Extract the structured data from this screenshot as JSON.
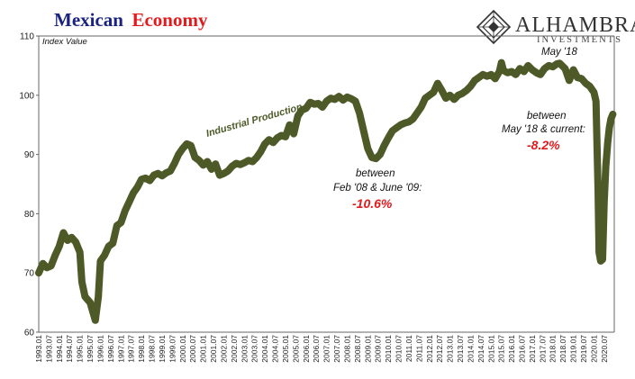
{
  "header": {
    "title_part1": "Mexican",
    "title_part2": "Economy",
    "title_color1": "#1a237e",
    "title_color2": "#e31a1c",
    "logo_name": "ALHAMBRA",
    "logo_sub": "INVESTMENTS"
  },
  "chart_data": {
    "type": "line",
    "title": "Mexican Economy",
    "ylabel": "Index Value",
    "xlabel": "",
    "ylim": [
      60,
      110
    ],
    "yticks": [
      60,
      70,
      80,
      90,
      100,
      110
    ],
    "grid": false,
    "line_color": "#4d5a28",
    "x_tick_labels": [
      "1993.01",
      "1993.07",
      "1994.01",
      "1994.07",
      "1995.01",
      "1995.07",
      "1996.01",
      "1996.07",
      "1997.01",
      "1997.07",
      "1998.01",
      "1998.07",
      "1999.01",
      "1999.07",
      "2000.01",
      "2000.07",
      "2001.01",
      "2001.07",
      "2002.01",
      "2002.07",
      "2003.01",
      "2003.07",
      "2004.01",
      "2004.07",
      "2005.01",
      "2005.07",
      "2006.01",
      "2006.07",
      "2007.01",
      "2007.07",
      "2008.01",
      "2008.07",
      "2009.01",
      "2009.07",
      "2010.01",
      "2010.07",
      "2011.01",
      "2011.07",
      "2012.01",
      "2012.07",
      "2013.01",
      "2013.07",
      "2014.01",
      "2014.07",
      "2015.01",
      "2015.07",
      "2016.01",
      "2016.07",
      "2017.01",
      "2017.07",
      "2018.01",
      "2018.07",
      "2019.01",
      "2019.07",
      "2020.01",
      "2020.07"
    ],
    "series": [
      {
        "name": "Industrial Production",
        "points": [
          [
            1993.0,
            70.0
          ],
          [
            1993.2,
            71.6
          ],
          [
            1993.4,
            70.9
          ],
          [
            1993.6,
            71.2
          ],
          [
            1993.8,
            73.0
          ],
          [
            1994.0,
            74.5
          ],
          [
            1994.2,
            76.8
          ],
          [
            1994.4,
            75.5
          ],
          [
            1994.6,
            76.0
          ],
          [
            1994.8,
            75.2
          ],
          [
            1995.0,
            73.5
          ],
          [
            1995.1,
            68.5
          ],
          [
            1995.25,
            66.0
          ],
          [
            1995.5,
            65.0
          ],
          [
            1995.75,
            62.0
          ],
          [
            1995.9,
            66.0
          ],
          [
            1996.0,
            72.0
          ],
          [
            1996.2,
            73.0
          ],
          [
            1996.4,
            74.5
          ],
          [
            1996.6,
            75.0
          ],
          [
            1996.8,
            78.0
          ],
          [
            1997.0,
            78.5
          ],
          [
            1997.2,
            80.5
          ],
          [
            1997.4,
            82.0
          ],
          [
            1997.6,
            83.5
          ],
          [
            1997.8,
            84.5
          ],
          [
            1998.0,
            85.8
          ],
          [
            1998.2,
            86.0
          ],
          [
            1998.4,
            85.6
          ],
          [
            1998.6,
            86.5
          ],
          [
            1998.8,
            86.8
          ],
          [
            1999.0,
            86.4
          ],
          [
            1999.2,
            86.9
          ],
          [
            1999.4,
            87.2
          ],
          [
            1999.6,
            88.5
          ],
          [
            1999.8,
            90.0
          ],
          [
            2000.0,
            91.0
          ],
          [
            2000.2,
            91.8
          ],
          [
            2000.4,
            91.5
          ],
          [
            2000.6,
            89.5
          ],
          [
            2000.8,
            89.0
          ],
          [
            2001.0,
            88.2
          ],
          [
            2001.2,
            88.8
          ],
          [
            2001.4,
            87.5
          ],
          [
            2001.6,
            88.4
          ],
          [
            2001.8,
            86.5
          ],
          [
            2002.0,
            86.8
          ],
          [
            2002.2,
            87.2
          ],
          [
            2002.4,
            88.0
          ],
          [
            2002.6,
            88.5
          ],
          [
            2002.8,
            88.3
          ],
          [
            2003.0,
            88.6
          ],
          [
            2003.2,
            89.0
          ],
          [
            2003.4,
            88.8
          ],
          [
            2003.6,
            89.5
          ],
          [
            2003.8,
            90.5
          ],
          [
            2004.0,
            91.8
          ],
          [
            2004.2,
            92.5
          ],
          [
            2004.4,
            92.0
          ],
          [
            2004.6,
            92.8
          ],
          [
            2004.8,
            93.2
          ],
          [
            2005.0,
            93.0
          ],
          [
            2005.2,
            95.0
          ],
          [
            2005.4,
            93.5
          ],
          [
            2005.6,
            96.5
          ],
          [
            2005.8,
            97.5
          ],
          [
            2006.0,
            97.8
          ],
          [
            2006.2,
            98.8
          ],
          [
            2006.4,
            98.5
          ],
          [
            2006.6,
            98.6
          ],
          [
            2006.8,
            98.0
          ],
          [
            2007.0,
            99.0
          ],
          [
            2007.2,
            99.5
          ],
          [
            2007.4,
            99.3
          ],
          [
            2007.6,
            99.8
          ],
          [
            2007.8,
            99.2
          ],
          [
            2008.0,
            99.7
          ],
          [
            2008.2,
            99.4
          ],
          [
            2008.4,
            99.0
          ],
          [
            2008.6,
            97.0
          ],
          [
            2008.8,
            94.0
          ],
          [
            2009.0,
            91.0
          ],
          [
            2009.2,
            89.5
          ],
          [
            2009.4,
            89.3
          ],
          [
            2009.6,
            90.0
          ],
          [
            2009.8,
            91.5
          ],
          [
            2010.0,
            92.8
          ],
          [
            2010.2,
            94.0
          ],
          [
            2010.4,
            94.5
          ],
          [
            2010.6,
            95.0
          ],
          [
            2010.8,
            95.3
          ],
          [
            2011.0,
            95.5
          ],
          [
            2011.2,
            96.0
          ],
          [
            2011.4,
            97.0
          ],
          [
            2011.6,
            98.0
          ],
          [
            2011.8,
            99.5
          ],
          [
            2012.0,
            100.0
          ],
          [
            2012.2,
            100.5
          ],
          [
            2012.4,
            102.0
          ],
          [
            2012.6,
            100.8
          ],
          [
            2012.8,
            99.5
          ],
          [
            2013.0,
            100.0
          ],
          [
            2013.2,
            99.3
          ],
          [
            2013.4,
            100.0
          ],
          [
            2013.6,
            100.3
          ],
          [
            2013.8,
            100.8
          ],
          [
            2014.0,
            101.5
          ],
          [
            2014.2,
            102.5
          ],
          [
            2014.4,
            103.0
          ],
          [
            2014.6,
            103.5
          ],
          [
            2014.8,
            103.2
          ],
          [
            2015.0,
            103.5
          ],
          [
            2015.2,
            102.8
          ],
          [
            2015.4,
            104.0
          ],
          [
            2015.5,
            105.5
          ],
          [
            2015.6,
            104.2
          ],
          [
            2015.8,
            103.8
          ],
          [
            2016.0,
            104.0
          ],
          [
            2016.2,
            103.5
          ],
          [
            2016.4,
            104.5
          ],
          [
            2016.6,
            104.0
          ],
          [
            2016.8,
            105.0
          ],
          [
            2017.0,
            104.3
          ],
          [
            2017.2,
            103.8
          ],
          [
            2017.4,
            103.5
          ],
          [
            2017.6,
            104.5
          ],
          [
            2017.8,
            105.0
          ],
          [
            2018.0,
            104.8
          ],
          [
            2018.2,
            105.3
          ],
          [
            2018.33,
            105.4
          ],
          [
            2018.6,
            104.5
          ],
          [
            2018.8,
            102.5
          ],
          [
            2019.0,
            104.3
          ],
          [
            2019.2,
            103.0
          ],
          [
            2019.4,
            102.8
          ],
          [
            2019.6,
            102.0
          ],
          [
            2019.8,
            101.5
          ],
          [
            2019.9,
            101.0
          ],
          [
            2020.0,
            100.5
          ],
          [
            2020.1,
            99.0
          ],
          [
            2020.2,
            84.0
          ],
          [
            2020.25,
            73.5
          ],
          [
            2020.33,
            72.0
          ],
          [
            2020.42,
            72.3
          ],
          [
            2020.5,
            82.0
          ],
          [
            2020.58,
            88.0
          ],
          [
            2020.67,
            92.0
          ],
          [
            2020.75,
            94.5
          ],
          [
            2020.83,
            96.0
          ],
          [
            2020.92,
            96.8
          ]
        ]
      }
    ],
    "annotations": {
      "series_label": "Industrial Production",
      "peak_label": "May '18",
      "gfc_line1": "between",
      "gfc_line2": "Feb '08 & June '09:",
      "gfc_pct": "-10.6%",
      "cur_line1": "between",
      "cur_line2": "May  '18 & current:",
      "cur_pct": "-8.2%"
    }
  }
}
